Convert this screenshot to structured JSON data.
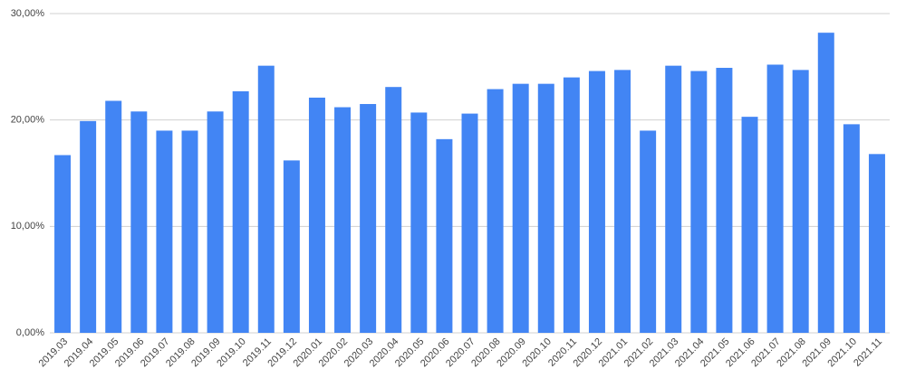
{
  "chart_data": {
    "type": "bar",
    "categories": [
      "2019.03",
      "2019.04",
      "2019.05",
      "2019.06",
      "2019.07",
      "2019.08",
      "2019.09",
      "2019.10",
      "2019.11",
      "2019.12",
      "2020.01",
      "2020.02",
      "2020.03",
      "2020.04",
      "2020.05",
      "2020.06",
      "2020.07",
      "2020.08",
      "2020.09",
      "2020.10",
      "2020.11",
      "2020.12",
      "2021.01",
      "2021.02",
      "2021.03",
      "2021.04",
      "2021.05",
      "2021.06",
      "2021.07",
      "2021.08",
      "2021.09",
      "2021.10",
      "2021.11"
    ],
    "values": [
      16.7,
      19.9,
      21.8,
      20.8,
      19.0,
      19.0,
      20.8,
      22.7,
      25.1,
      16.2,
      22.1,
      21.2,
      21.5,
      23.1,
      20.7,
      18.2,
      20.6,
      22.9,
      23.4,
      23.4,
      24.0,
      24.6,
      24.7,
      19.0,
      25.1,
      24.6,
      24.9,
      20.3,
      25.2,
      24.7,
      28.2,
      19.6,
      16.8
    ],
    "color": "#4285f4",
    "ylim": [
      0,
      30
    ],
    "yticks": [
      {
        "value": 0,
        "label": "0,00%"
      },
      {
        "value": 10,
        "label": "10,00%"
      },
      {
        "value": 20,
        "label": "20,00%"
      },
      {
        "value": 30,
        "label": "30,00%"
      }
    ],
    "grid": true
  }
}
